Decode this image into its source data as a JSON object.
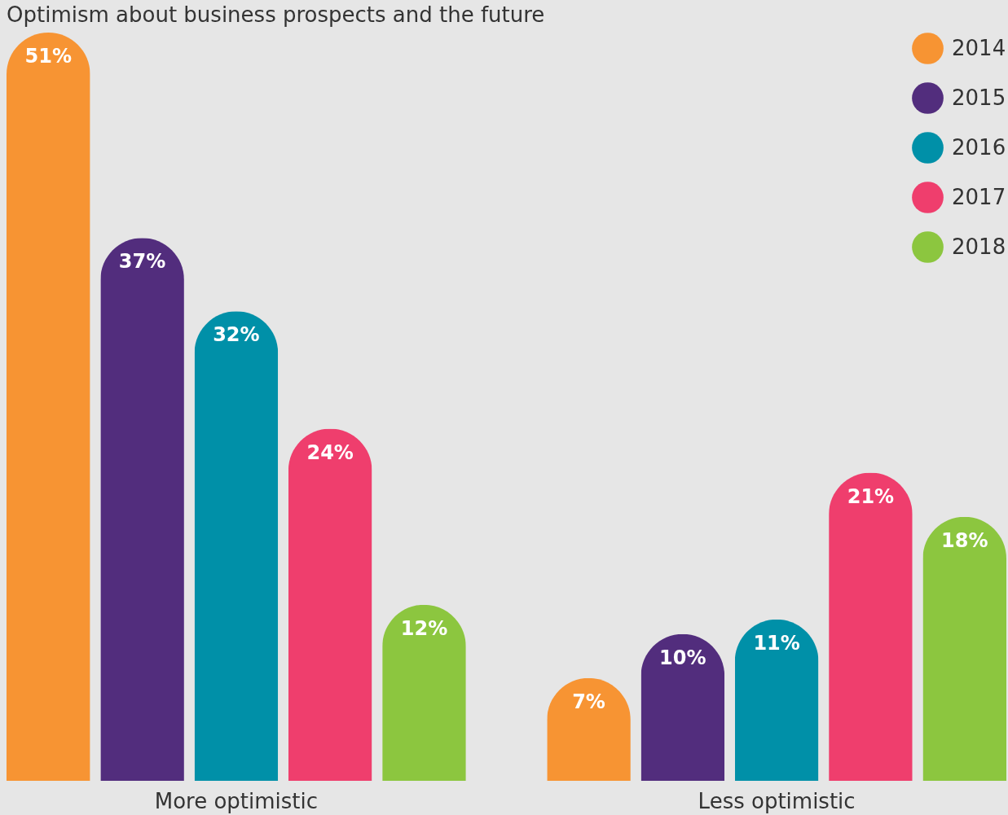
{
  "chart_data": {
    "type": "bar",
    "title": "Optimism about business prospects and the future",
    "categories": [
      "More optimistic",
      "Less optimistic"
    ],
    "series": [
      {
        "name": "2014",
        "color": "#f79433",
        "values": [
          51,
          7
        ],
        "value_labels": [
          "51%",
          "7%"
        ]
      },
      {
        "name": "2015",
        "color": "#522d7d",
        "values": [
          37,
          10
        ],
        "value_labels": [
          "37%",
          "10%"
        ]
      },
      {
        "name": "2016",
        "color": "#0090a8",
        "values": [
          32,
          11
        ],
        "value_labels": [
          "32%",
          "11%"
        ]
      },
      {
        "name": "2017",
        "color": "#ef3e6d",
        "values": [
          24,
          21
        ],
        "value_labels": [
          "24%",
          "21%"
        ]
      },
      {
        "name": "2018",
        "color": "#8cc63f",
        "values": [
          12,
          18
        ],
        "value_labels": [
          "12%",
          "18%"
        ]
      }
    ],
    "legend": "top right",
    "grid": false
  }
}
